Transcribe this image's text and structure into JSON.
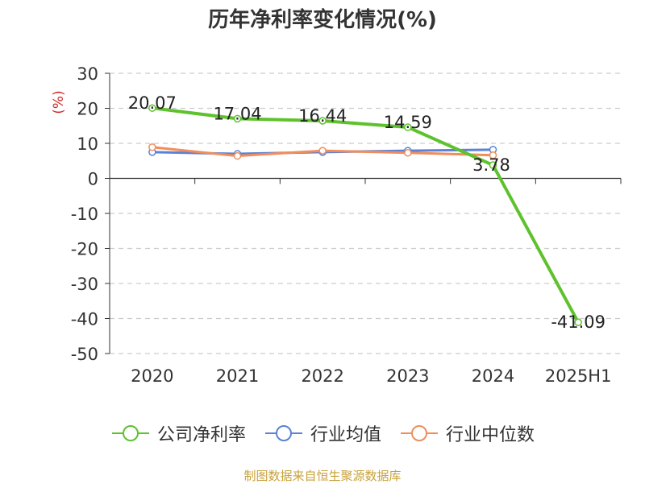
{
  "title": "历年净利率变化情况(%)",
  "source": "制图数据来自恒生聚源数据库",
  "colors": {
    "company": "#5ec22d",
    "industry_avg": "#5b82d6",
    "industry_median": "#f08d5c",
    "ylabel": "#d22a2a"
  },
  "chart_data": {
    "type": "line",
    "title": "历年净利率变化情况(%)",
    "ylabel": "(%)",
    "xlabel": "",
    "categories": [
      "2020",
      "2021",
      "2022",
      "2023",
      "2024",
      "2025H1"
    ],
    "ylim": [
      -50,
      30
    ],
    "yticks": [
      30,
      20,
      10,
      0,
      -10,
      -20,
      -30,
      -40,
      -50
    ],
    "grid": true,
    "legend_position": "bottom",
    "series": [
      {
        "name": "公司净利率",
        "color_key": "company",
        "values": [
          20.07,
          17.04,
          16.44,
          14.59,
          3.78,
          -41.09
        ],
        "labels": [
          "20.07",
          "17.04",
          "16.44",
          "14.59",
          "3.78",
          "-41.09"
        ]
      },
      {
        "name": "行业均值",
        "color_key": "industry_avg",
        "values": [
          7.5,
          7.0,
          7.5,
          7.9,
          8.2,
          null
        ]
      },
      {
        "name": "行业中位数",
        "color_key": "industry_median",
        "values": [
          8.9,
          6.4,
          7.9,
          7.3,
          6.6,
          null
        ]
      }
    ]
  }
}
